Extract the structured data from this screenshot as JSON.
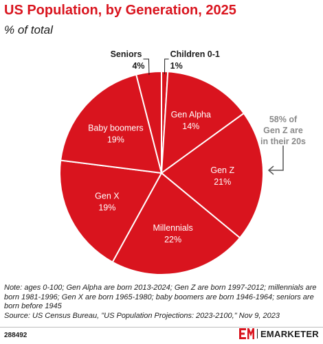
{
  "header": {
    "title": "US Population, by Generation, 2025",
    "subtitle": "% of total"
  },
  "chart_data": {
    "type": "pie",
    "title": "US Population, by Generation, 2025",
    "subtitle": "% of total",
    "slices": [
      {
        "label": "Children 0-1",
        "value": 1,
        "value_label": "1%",
        "label_position": "outside"
      },
      {
        "label": "Gen Alpha",
        "value": 14,
        "value_label": "14%",
        "label_position": "inside"
      },
      {
        "label": "Gen Z",
        "value": 21,
        "value_label": "21%",
        "label_position": "inside"
      },
      {
        "label": "Millennials",
        "value": 22,
        "value_label": "22%",
        "label_position": "inside"
      },
      {
        "label": "Gen X",
        "value": 19,
        "value_label": "19%",
        "label_position": "inside"
      },
      {
        "label": "Baby boomers",
        "value": 19,
        "value_label": "19%",
        "label_position": "inside"
      },
      {
        "label": "Seniors",
        "value": 4,
        "value_label": "4%",
        "label_position": "outside"
      }
    ],
    "annotation": {
      "lines": [
        "58% of",
        "Gen Z are",
        "in their 20s"
      ],
      "target": "Gen Z"
    },
    "colors": {
      "slice": "#d9141e",
      "border": "#ffffff",
      "annotation_text": "#8a8a8a",
      "arrow": "#555555"
    }
  },
  "footer": {
    "notes": [
      "Note: ages 0-100; Gen Alpha are born 2013-2024; Gen Z are born 1997-2012; millennials are born 1981-1996; Gen X are born 1965-1980; baby boomers are born 1946-1964; seniors are born before 1945",
      "Source: US Census Bureau, \"US Population Projections: 2023-2100,\" Nov 9, 2023"
    ],
    "chart_id": "288492",
    "brand_mark": "EM",
    "brand_name": "EMARKETER"
  }
}
